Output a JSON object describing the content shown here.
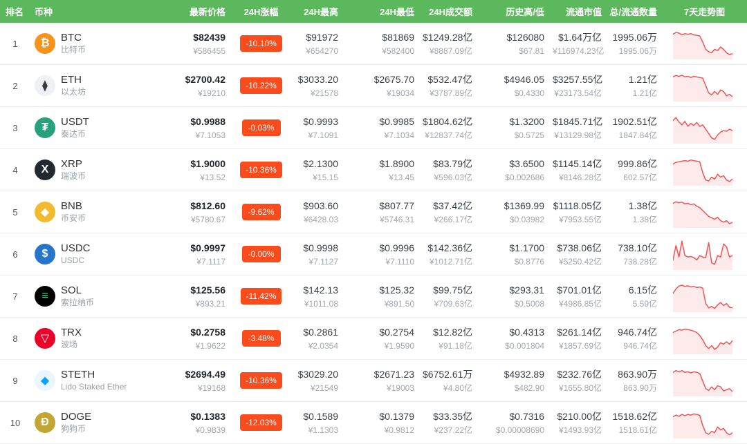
{
  "columns": [
    "排名",
    "币种",
    "最新价格",
    "24H涨幅",
    "24H最高",
    "24H最低",
    "24H成交额",
    "历史高/低",
    "流通市值",
    "总/流通数量",
    "7天走势图"
  ],
  "colors": {
    "header_green": "#5cb85c",
    "badge_red": "#fa4b1c",
    "spark_line": "#f05454",
    "spark_fill": "rgba(240,84,84,0.12)"
  },
  "rows": [
    {
      "rank": "1",
      "symbol": "BTC",
      "name": "比特币",
      "price_usd": "$82439",
      "price_cny": "¥586455",
      "change": "-10.10%",
      "high_usd": "$91972",
      "high_cny": "¥654270",
      "low_usd": "$81869",
      "low_cny": "¥582400",
      "vol_usd": "$1249.28亿",
      "vol_cny": "¥8887.09亿",
      "ath_usd": "$126080",
      "atl_usd": "$67.81",
      "mcap_usd": "$1.64万亿",
      "mcap_cny": "¥116974.23亿",
      "supply_total": "1995.06万",
      "supply_circ": "1995.06万",
      "icon": {
        "glyph": "₿",
        "bg": "#f7931a",
        "fg": "#ffffff",
        "semantic": "btc-icon"
      },
      "sparkline": [
        82,
        88,
        86,
        80,
        84,
        82,
        84,
        80,
        78,
        76,
        55,
        30,
        22,
        18,
        30,
        26,
        38,
        30,
        18,
        12,
        15
      ]
    },
    {
      "rank": "2",
      "symbol": "ETH",
      "name": "以太坊",
      "price_usd": "$2700.42",
      "price_cny": "¥19210",
      "change": "-10.22%",
      "high_usd": "$3033.20",
      "high_cny": "¥21578",
      "low_usd": "$2675.70",
      "low_cny": "¥19034",
      "vol_usd": "$532.47亿",
      "vol_cny": "¥3787.89亿",
      "ath_usd": "$4946.05",
      "atl_usd": "$0.4330",
      "mcap_usd": "$3257.55亿",
      "mcap_cny": "¥23173.54亿",
      "supply_total": "1.21亿",
      "supply_circ": "1.21亿",
      "icon": {
        "glyph": "⧫",
        "bg": "#eef0f4",
        "fg": "#3c3c3d",
        "semantic": "eth-icon"
      },
      "sparkline": [
        80,
        85,
        82,
        86,
        80,
        82,
        78,
        82,
        80,
        78,
        76,
        50,
        25,
        18,
        30,
        20,
        35,
        30,
        15,
        20,
        12
      ]
    },
    {
      "rank": "3",
      "symbol": "USDT",
      "name": "泰达币",
      "price_usd": "$0.9988",
      "price_cny": "¥7.1053",
      "change": "-0.03%",
      "high_usd": "$0.9993",
      "high_cny": "¥7.1091",
      "low_usd": "$0.9985",
      "low_cny": "¥7.1034",
      "vol_usd": "$1804.62亿",
      "vol_cny": "¥12837.74亿",
      "ath_usd": "$1.3200",
      "atl_usd": "$0.5725",
      "mcap_usd": "$1845.71亿",
      "mcap_cny": "¥13129.98亿",
      "supply_total": "1902.51亿",
      "supply_circ": "1847.84亿",
      "icon": {
        "glyph": "₮",
        "bg": "#26a17b",
        "fg": "#ffffff",
        "semantic": "usdt-icon"
      },
      "sparkline": [
        75,
        85,
        70,
        60,
        72,
        55,
        65,
        58,
        68,
        55,
        60,
        45,
        30,
        15,
        10,
        25,
        35,
        40,
        38,
        45,
        40
      ]
    },
    {
      "rank": "4",
      "symbol": "XRP",
      "name": "瑞波币",
      "price_usd": "$1.9000",
      "price_cny": "¥13.52",
      "change": "-10.36%",
      "high_usd": "$2.1300",
      "high_cny": "¥15.15",
      "low_usd": "$1.8900",
      "low_cny": "¥13.45",
      "vol_usd": "$83.79亿",
      "vol_cny": "¥596.03亿",
      "ath_usd": "$3.6500",
      "atl_usd": "$0.002686",
      "mcap_usd": "$1145.14亿",
      "mcap_cny": "¥8146.28亿",
      "supply_total": "999.86亿",
      "supply_circ": "602.57亿",
      "icon": {
        "glyph": "X",
        "bg": "#23292f",
        "fg": "#ffffff",
        "semantic": "xrp-icon"
      },
      "sparkline": [
        70,
        76,
        78,
        80,
        82,
        80,
        84,
        82,
        80,
        78,
        40,
        15,
        12,
        25,
        18,
        35,
        25,
        30,
        15,
        10,
        18
      ]
    },
    {
      "rank": "5",
      "symbol": "BNB",
      "name": "币安币",
      "price_usd": "$812.60",
      "price_cny": "¥5780.67",
      "change": "-9.62%",
      "high_usd": "$903.60",
      "high_cny": "¥6428.03",
      "low_usd": "$807.77",
      "low_cny": "¥5746.31",
      "vol_usd": "$37.42亿",
      "vol_cny": "¥266.17亿",
      "ath_usd": "$1369.99",
      "atl_usd": "$0.03982",
      "mcap_usd": "$1118.05亿",
      "mcap_cny": "¥7953.55亿",
      "supply_total": "1.38亿",
      "supply_circ": "1.38亿",
      "icon": {
        "glyph": "◆",
        "bg": "#f3ba2f",
        "fg": "#ffffff",
        "semantic": "bnb-icon"
      },
      "sparkline": [
        80,
        85,
        82,
        84,
        78,
        80,
        75,
        78,
        70,
        65,
        55,
        45,
        35,
        30,
        25,
        32,
        20,
        15,
        20,
        10,
        14
      ]
    },
    {
      "rank": "6",
      "symbol": "USDC",
      "name": "USDC",
      "price_usd": "$0.9997",
      "price_cny": "¥7.1117",
      "change": "-0.00%",
      "high_usd": "$0.9998",
      "high_cny": "¥7.1127",
      "low_usd": "$0.9996",
      "low_cny": "¥7.1110",
      "vol_usd": "$142.36亿",
      "vol_cny": "¥1012.71亿",
      "ath_usd": "$1.1700",
      "atl_usd": "$0.8776",
      "mcap_usd": "$738.06亿",
      "mcap_cny": "¥5250.42亿",
      "supply_total": "738.10亿",
      "supply_circ": "738.28亿",
      "icon": {
        "glyph": "$",
        "bg": "#2775ca",
        "fg": "#ffffff",
        "semantic": "usdc-icon"
      },
      "sparkline": [
        30,
        80,
        40,
        95,
        45,
        40,
        42,
        38,
        30,
        45,
        40,
        38,
        90,
        20,
        15,
        45,
        40,
        85,
        75,
        40,
        45
      ]
    },
    {
      "rank": "7",
      "symbol": "SOL",
      "name": "索拉纳币",
      "price_usd": "$125.56",
      "price_cny": "¥893.21",
      "change": "-11.42%",
      "high_usd": "$142.13",
      "high_cny": "¥1011.08",
      "low_usd": "$125.32",
      "low_cny": "¥891.50",
      "vol_usd": "$99.75亿",
      "vol_cny": "¥709.63亿",
      "ath_usd": "$293.31",
      "atl_usd": "$0.5008",
      "mcap_usd": "$701.01亿",
      "mcap_cny": "¥4986.85亿",
      "supply_total": "6.15亿",
      "supply_circ": "5.59亿",
      "icon": {
        "glyph": "≡",
        "bg": "#000000",
        "fg": "#14f195",
        "semantic": "sol-icon"
      },
      "sparkline": [
        60,
        75,
        85,
        88,
        84,
        86,
        82,
        84,
        80,
        82,
        78,
        25,
        10,
        15,
        8,
        20,
        28,
        18,
        25,
        12,
        10
      ]
    },
    {
      "rank": "8",
      "symbol": "TRX",
      "name": "波场",
      "price_usd": "$0.2758",
      "price_cny": "¥1.9622",
      "change": "-3.48%",
      "high_usd": "$0.2861",
      "high_cny": "¥2.0354",
      "low_usd": "$0.2754",
      "low_cny": "¥1.9590",
      "vol_usd": "$12.82亿",
      "vol_cny": "¥91.18亿",
      "ath_usd": "$0.4313",
      "atl_usd": "$0.001804",
      "mcap_usd": "$261.14亿",
      "mcap_cny": "¥1857.69亿",
      "supply_total": "946.74亿",
      "supply_circ": "946.74亿",
      "icon": {
        "glyph": "▽",
        "bg": "#eb0029",
        "fg": "#ffffff",
        "semantic": "trx-icon"
      },
      "sparkline": [
        70,
        75,
        80,
        78,
        82,
        80,
        78,
        75,
        70,
        60,
        45,
        25,
        15,
        25,
        12,
        20,
        35,
        30,
        38,
        30,
        42
      ]
    },
    {
      "rank": "9",
      "symbol": "STETH",
      "name": "Lido Staked Ether",
      "price_usd": "$2694.49",
      "price_cny": "¥19168",
      "change": "-10.36%",
      "high_usd": "$3029.20",
      "high_cny": "¥21549",
      "low_usd": "$2671.23",
      "low_cny": "¥19003",
      "vol_usd": "$6752.61万",
      "vol_cny": "¥4.80亿",
      "ath_usd": "$4932.89",
      "atl_usd": "$482.90",
      "mcap_usd": "$232.76亿",
      "mcap_cny": "¥1655.80亿",
      "supply_total": "863.90万",
      "supply_circ": "863.90万",
      "icon": {
        "glyph": "◆",
        "bg": "#eaf5fd",
        "fg": "#00a3ff",
        "semantic": "steth-icon"
      },
      "sparkline": [
        78,
        84,
        80,
        84,
        78,
        80,
        76,
        80,
        78,
        74,
        48,
        22,
        16,
        28,
        18,
        32,
        28,
        14,
        18,
        22,
        12
      ]
    },
    {
      "rank": "10",
      "symbol": "DOGE",
      "name": "狗狗币",
      "price_usd": "$0.1383",
      "price_cny": "¥0.9839",
      "change": "-12.03%",
      "high_usd": "$0.1589",
      "high_cny": "¥1.1303",
      "low_usd": "$0.1379",
      "low_cny": "¥0.9812",
      "vol_usd": "$33.35亿",
      "vol_cny": "¥237.22亿",
      "ath_usd": "$0.7316",
      "atl_usd": "$0.00008690",
      "mcap_usd": "$210.00亿",
      "mcap_cny": "¥1493.93亿",
      "supply_total": "1518.62亿",
      "supply_circ": "1518.61亿",
      "icon": {
        "glyph": "Ð",
        "bg": "#c2a633",
        "fg": "#ffffff",
        "semantic": "doge-icon"
      },
      "sparkline": [
        70,
        76,
        72,
        78,
        74,
        78,
        76,
        80,
        78,
        75,
        40,
        15,
        10,
        20,
        15,
        35,
        25,
        30,
        15,
        8,
        15
      ]
    }
  ]
}
